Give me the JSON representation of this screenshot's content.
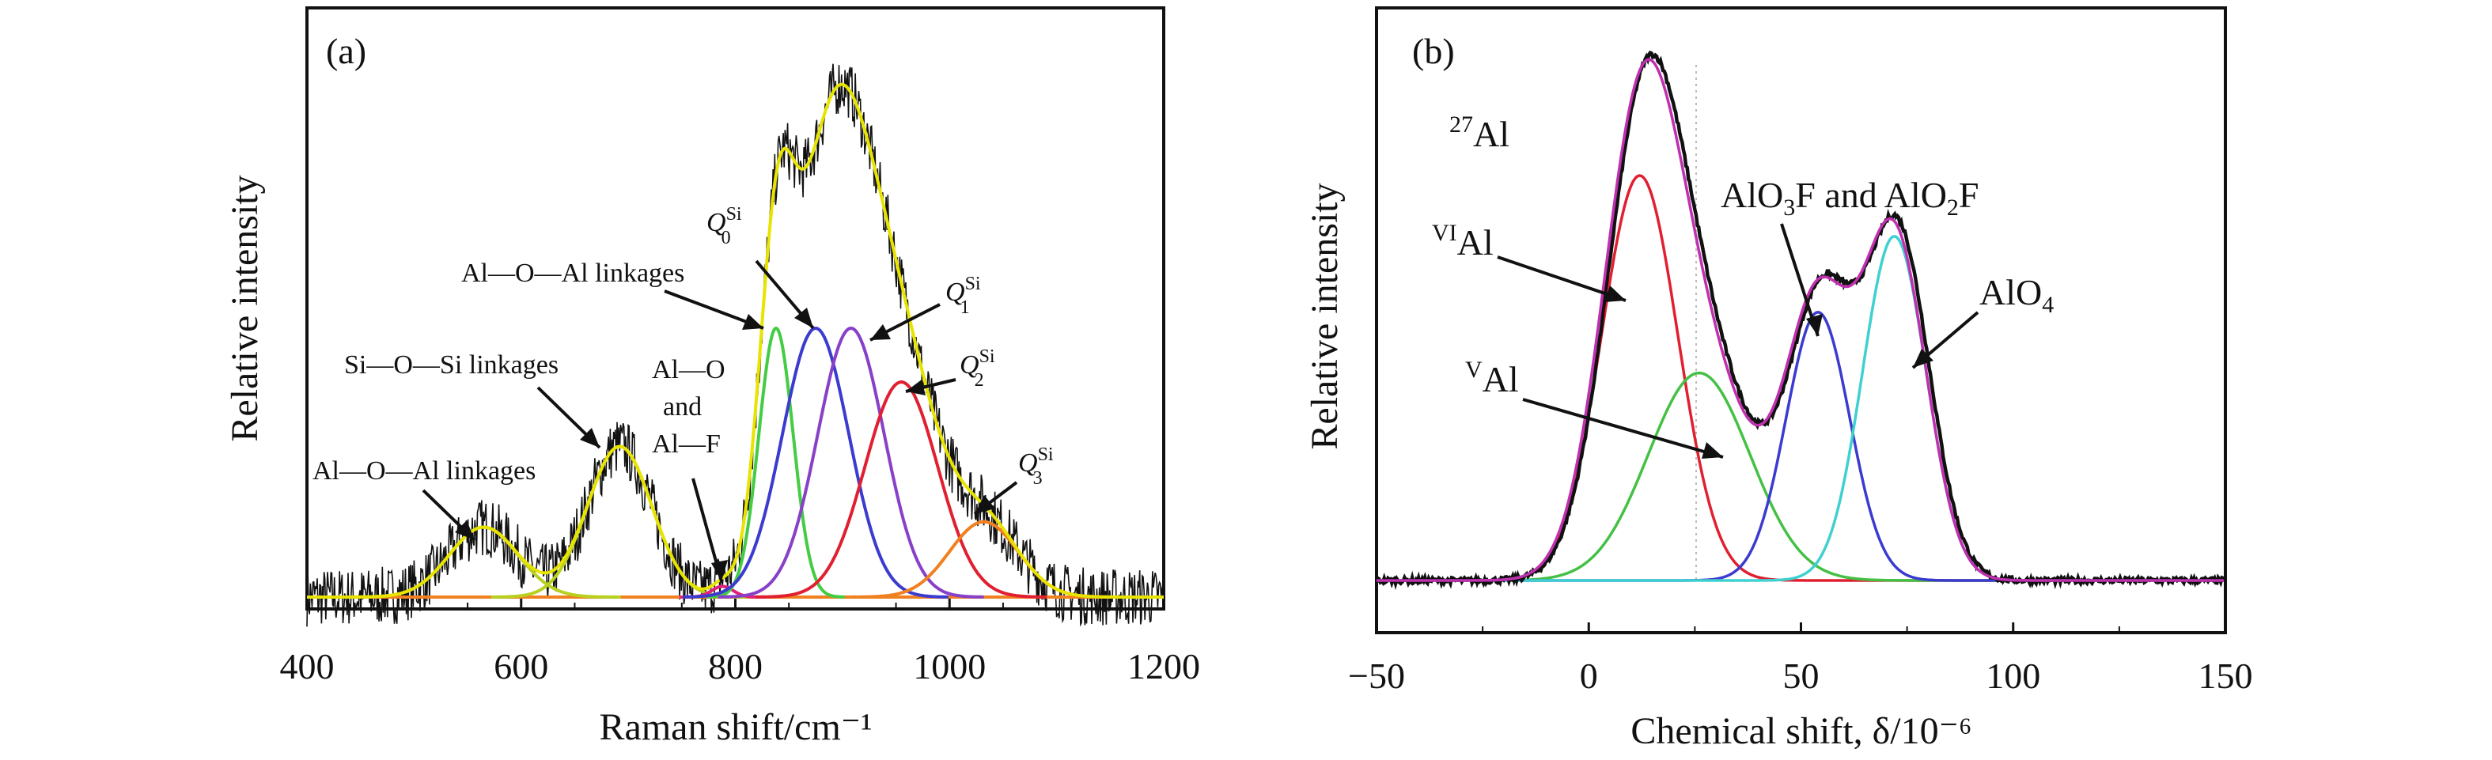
{
  "chart_data": [
    {
      "panel": "(a)",
      "type": "line",
      "xlabel": "Raman shift/cm⁻¹",
      "ylabel": "Relative intensity",
      "xlim": [
        400,
        1200
      ],
      "ylim": [
        0,
        1.05
      ],
      "xticks": [
        "400",
        "600",
        "800",
        "1000",
        "1200"
      ],
      "y_ticks_shown": false,
      "legend": "none",
      "series": [
        {
          "color": "#111111",
          "style": "noisy measured spectrum (black)"
        },
        {
          "color": "#e8e400",
          "style": "fitted envelope (yellow)"
        },
        {
          "color": "#f08020",
          "style": "baseline (orange)"
        }
      ],
      "bands": [
        {
          "name": "Al—O—Al linkages",
          "center": 565,
          "height": 0.13,
          "width": 32,
          "color": "#b8d020"
        },
        {
          "name": "Si—O—Si linkages",
          "center": 692,
          "height": 0.28,
          "width": 30,
          "color": "#b8d020"
        },
        {
          "name": "Al—O and Al—F",
          "center": 788,
          "height": 0.02,
          "width": 10,
          "color": "#e0207a"
        },
        {
          "name": "Al—O—Al linkages",
          "center": 838,
          "height": 0.5,
          "width": 16,
          "color": "#44cc44"
        },
        {
          "name": "Q0Si",
          "center": 875,
          "height": 0.5,
          "width": 31,
          "color": "#3b3bd0"
        },
        {
          "name": "Q1Si",
          "center": 908,
          "height": 0.5,
          "width": 31,
          "color": "#8840c8"
        },
        {
          "name": "Q2Si",
          "center": 955,
          "height": 0.4,
          "width": 34,
          "color": "#e02030"
        },
        {
          "name": "Q3Si",
          "center": 1032,
          "height": 0.14,
          "width": 32,
          "color": "#f08020"
        }
      ],
      "annotations": [
        "Al—O—Al linkages",
        "Si—O—Si linkages",
        "Al—O",
        "and",
        "Al—F",
        "Al—O—Al linkages",
        "Q",
        "Si",
        "0",
        "Q",
        "Si",
        "1",
        "Q",
        "Si",
        "2",
        "Q",
        "Si",
        "3"
      ]
    },
    {
      "panel": "(b)",
      "type": "line",
      "xlabel": "Chemical shift, δ/10⁻⁶",
      "ylabel": "Relative intensity",
      "xlim": [
        -50,
        150
      ],
      "ylim": [
        0,
        1.05
      ],
      "xticks": [
        "−50",
        "0",
        "50",
        "100",
        "150"
      ],
      "y_ticks_shown": false,
      "legend": "none",
      "series": [
        {
          "color": "#111111",
          "style": "measured spectrum (black)"
        },
        {
          "color": "#c030b0",
          "style": "fitted envelope (magenta)"
        }
      ],
      "components": [
        {
          "name": "VIAl",
          "center": 12,
          "height": 0.8,
          "width": 9,
          "color": "#e02030"
        },
        {
          "name": "VAl",
          "center": 26,
          "height": 0.41,
          "width": 12,
          "color": "#44c044"
        },
        {
          "name": "AlO3F and AlO2F",
          "center": 54,
          "height": 0.53,
          "width": 7.5,
          "color": "#3b3bd0"
        },
        {
          "name": "AlO4",
          "center": 72,
          "height": 0.68,
          "width": 7.5,
          "color": "#40d0d0"
        }
      ],
      "annotations": [
        "27",
        "Al",
        "VI",
        "Al",
        "V",
        "Al",
        "AlO",
        "3",
        "F and AlO",
        "2",
        "F",
        "AlO",
        "4"
      ]
    }
  ]
}
